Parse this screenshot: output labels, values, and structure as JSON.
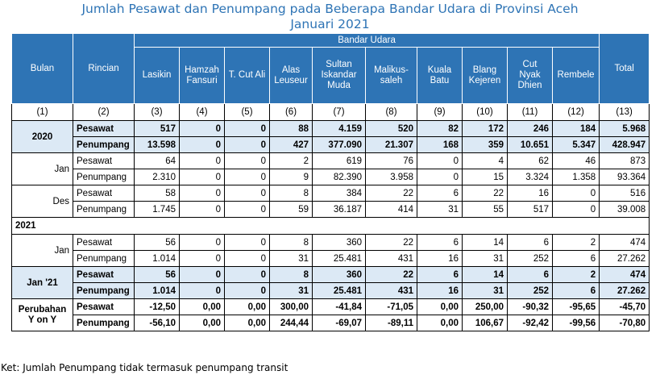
{
  "title_line1": "Jumlah Pesawat dan Penumpang pada Beberapa Bandar Udara di Provinsi Aceh",
  "title_line2": "Januari 2021",
  "headers": {
    "bulan": "Bulan",
    "rincian": "Rincian",
    "bandar_udara": "Bandar Udara",
    "total": "Total",
    "airports": [
      "Lasikin",
      "Hamzah Fansuri",
      "T. Cut Ali",
      "Alas Leuseur",
      "Sultan Iskandar Muda",
      "Malikus-saleh",
      "Kuala Batu",
      "Blang Kejeren",
      "Cut Nyak Dhien",
      "Rembele"
    ],
    "index": [
      "(1)",
      "(2)",
      "(3)",
      "(4)",
      "(5)",
      "(6)",
      "(7)",
      "(8)",
      "(9)",
      "(10)",
      "(11)",
      "(12)",
      "(13)"
    ]
  },
  "groups": [
    {
      "label": "2020",
      "bold": true,
      "shaded": true,
      "rows": [
        {
          "rincian": "Pesawat",
          "values": [
            "517",
            "0",
            "0",
            "88",
            "4.159",
            "520",
            "82",
            "172",
            "246",
            "184",
            "5.968"
          ]
        },
        {
          "rincian": "Penumpang",
          "values": [
            "13.598",
            "0",
            "0",
            "427",
            "377.090",
            "21.307",
            "168",
            "359",
            "10.651",
            "5.347",
            "428.947"
          ]
        }
      ]
    },
    {
      "label": "Jan",
      "bold": false,
      "shaded": false,
      "rows": [
        {
          "rincian": "Pesawat",
          "values": [
            "64",
            "0",
            "0",
            "2",
            "619",
            "76",
            "0",
            "4",
            "62",
            "46",
            "873"
          ]
        },
        {
          "rincian": "Penumpang",
          "values": [
            "2.310",
            "0",
            "0",
            "9",
            "82.390",
            "3.958",
            "0",
            "15",
            "3.324",
            "1.358",
            "93.364"
          ]
        }
      ]
    },
    {
      "label": "Des",
      "bold": false,
      "shaded": false,
      "rows": [
        {
          "rincian": "Pesawat",
          "values": [
            "58",
            "0",
            "0",
            "8",
            "384",
            "22",
            "6",
            "22",
            "16",
            "0",
            "516"
          ]
        },
        {
          "rincian": "Penumpang",
          "values": [
            "1.745",
            "0",
            "0",
            "59",
            "36.187",
            "414",
            "31",
            "55",
            "517",
            "0",
            "39.008"
          ]
        }
      ]
    }
  ],
  "section_2021": "2021",
  "groups2": [
    {
      "label": "Jan",
      "bold": false,
      "shaded": false,
      "rows": [
        {
          "rincian": "Pesawat",
          "values": [
            "56",
            "0",
            "0",
            "8",
            "360",
            "22",
            "6",
            "14",
            "6",
            "2",
            "474"
          ]
        },
        {
          "rincian": "Penumpang",
          "values": [
            "1.014",
            "0",
            "0",
            "31",
            "25.481",
            "431",
            "16",
            "31",
            "252",
            "6",
            "27.262"
          ]
        }
      ]
    },
    {
      "label": "Jan '21",
      "bold": true,
      "shaded": true,
      "rows": [
        {
          "rincian": "Pesawat",
          "values": [
            "56",
            "0",
            "0",
            "8",
            "360",
            "22",
            "6",
            "14",
            "6",
            "2",
            "474"
          ]
        },
        {
          "rincian": "Penumpang",
          "values": [
            "1.014",
            "0",
            "0",
            "31",
            "25.481",
            "431",
            "16",
            "31",
            "252",
            "6",
            "27.262"
          ]
        }
      ]
    },
    {
      "label": "Perubahan Y on Y",
      "bold": true,
      "shaded": false,
      "rows": [
        {
          "rincian": "Pesawat",
          "values": [
            "-12,50",
            "0,00",
            "0,00",
            "300,00",
            "-41,84",
            "-71,05",
            "0,00",
            "250,00",
            "-90,32",
            "-95,65",
            "-45,70"
          ]
        },
        {
          "rincian": "Penumpang",
          "values": [
            "-56,10",
            "0,00",
            "0,00",
            "244,44",
            "-69,07",
            "-89,11",
            "0,00",
            "106,67",
            "-92,42",
            "-99,56",
            "-70,80"
          ]
        }
      ]
    }
  ],
  "note": "Ket: Jumlah Penumpang tidak termasuk penumpang transit"
}
